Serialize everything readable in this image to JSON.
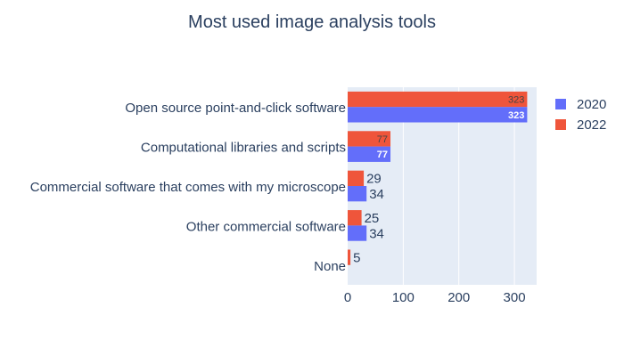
{
  "chart_data": {
    "type": "bar",
    "orientation": "horizontal",
    "barmode": "group",
    "title": "Most used image analysis tools",
    "categories": [
      "Open source point-and-click software",
      "Computational libraries and scripts",
      "Commercial software that comes with my microscope",
      "Other commercial software",
      "None"
    ],
    "series": [
      {
        "name": "2020",
        "color": "#636efa",
        "values": [
          323,
          77,
          34,
          34,
          null
        ],
        "labels": [
          "323",
          "77",
          "34",
          "34",
          ""
        ]
      },
      {
        "name": "2022",
        "color": "#ef553b",
        "values": [
          323,
          77,
          29,
          25,
          5
        ],
        "labels": [
          "323",
          "77",
          "29",
          "25",
          "5"
        ]
      }
    ],
    "xlim": [
      0,
      340
    ],
    "xticks": [
      0,
      100,
      200,
      300
    ],
    "xtick_labels": [
      "0",
      "100",
      "200",
      "300"
    ],
    "grid": true,
    "legend_position": "right",
    "plot_background": "#e5ecf6"
  }
}
